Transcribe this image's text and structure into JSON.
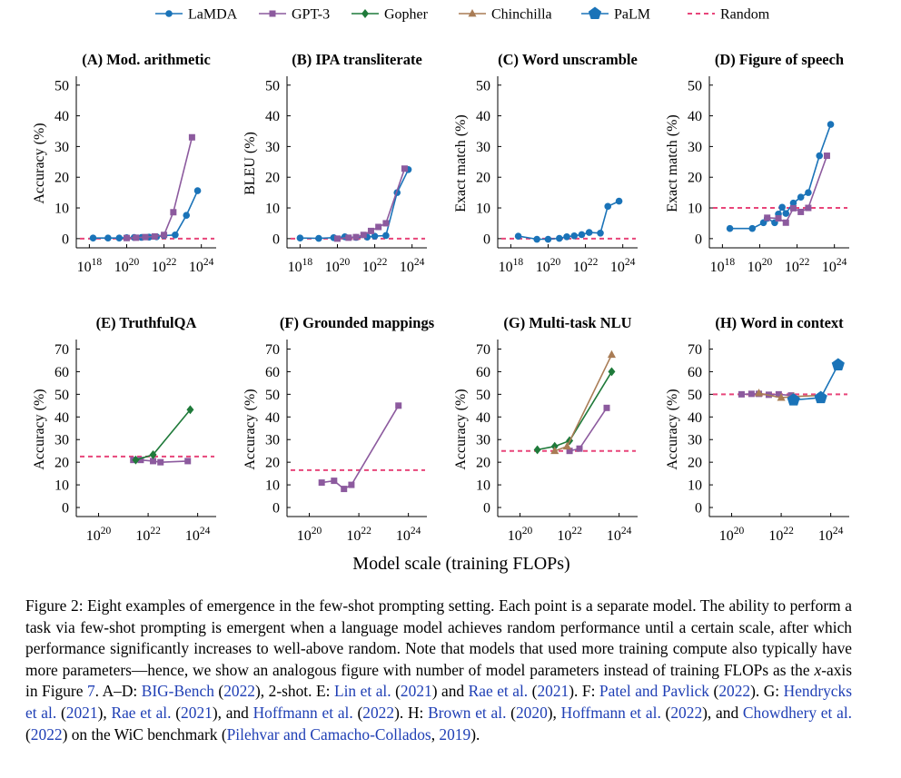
{
  "legend": [
    {
      "name": "LaMDA",
      "color": "#1a73b8",
      "marker": "circle"
    },
    {
      "name": "GPT-3",
      "color": "#8c5a9e",
      "marker": "square"
    },
    {
      "name": "Gopher",
      "color": "#1f7a3a",
      "marker": "diamond"
    },
    {
      "name": "Chinchilla",
      "color": "#a97c55",
      "marker": "triangle"
    },
    {
      "name": "PaLM",
      "color": "#1a73b8",
      "marker": "pentagon"
    },
    {
      "name": "Random",
      "color": "#e8457a",
      "marker": "dashed-line"
    }
  ],
  "shared_xlabel": "Model scale (training FLOPs)",
  "chart_data": [
    {
      "type": "line",
      "title": "(A) Mod. arithmetic",
      "ylabel": "Accuracy (%)",
      "xscale": "log",
      "xlim_exp": [
        17.3,
        24.6
      ],
      "xticks_exp": [
        18,
        20,
        22,
        24
      ],
      "ylim": [
        -3,
        52
      ],
      "yticks": [
        0,
        10,
        20,
        30,
        40,
        50
      ],
      "random": 0,
      "series": [
        {
          "name": "LaMDA",
          "points": [
            [
              18.2,
              0.2
            ],
            [
              19.0,
              0.2
            ],
            [
              19.6,
              0.2
            ],
            [
              20.0,
              0.3
            ],
            [
              20.4,
              0.4
            ],
            [
              20.8,
              0.4
            ],
            [
              21.2,
              0.5
            ],
            [
              21.6,
              0.6
            ],
            [
              22.0,
              1.0
            ],
            [
              22.6,
              1.2
            ],
            [
              23.2,
              7.6
            ],
            [
              23.8,
              15.6
            ]
          ]
        },
        {
          "name": "GPT-3",
          "points": [
            [
              20.0,
              0.2
            ],
            [
              20.5,
              0.3
            ],
            [
              21.0,
              0.5
            ],
            [
              21.5,
              0.7
            ],
            [
              22.0,
              1.2
            ],
            [
              22.5,
              8.6
            ],
            [
              23.5,
              33.0
            ]
          ]
        }
      ]
    },
    {
      "type": "line",
      "title": "(B) IPA transliterate",
      "ylabel": "BLEU (%)",
      "xscale": "log",
      "xlim_exp": [
        17.3,
        24.6
      ],
      "xticks_exp": [
        18,
        20,
        22,
        24
      ],
      "ylim": [
        -3,
        52
      ],
      "yticks": [
        0,
        10,
        20,
        30,
        40,
        50
      ],
      "random": 0,
      "series": [
        {
          "name": "LaMDA",
          "points": [
            [
              18.0,
              0.2
            ],
            [
              19.0,
              0.1
            ],
            [
              19.8,
              0.3
            ],
            [
              20.4,
              0.6
            ],
            [
              21.0,
              0.4
            ],
            [
              21.6,
              0.5
            ],
            [
              22.0,
              0.8
            ],
            [
              22.6,
              1.0
            ],
            [
              23.2,
              15.0
            ],
            [
              23.8,
              22.5
            ]
          ]
        },
        {
          "name": "GPT-3",
          "points": [
            [
              20.0,
              0.0
            ],
            [
              20.6,
              0.3
            ],
            [
              21.0,
              0.5
            ],
            [
              21.4,
              1.2
            ],
            [
              21.8,
              2.5
            ],
            [
              22.2,
              3.8
            ],
            [
              22.6,
              5.0
            ],
            [
              23.6,
              22.8
            ]
          ]
        }
      ]
    },
    {
      "type": "line",
      "title": "(C) Word unscramble",
      "ylabel": "Exact match (%)",
      "xscale": "log",
      "xlim_exp": [
        17.3,
        24.6
      ],
      "xticks_exp": [
        18,
        20,
        22,
        24
      ],
      "ylim": [
        -3,
        52
      ],
      "yticks": [
        0,
        10,
        20,
        30,
        40,
        50
      ],
      "random": 0,
      "series": [
        {
          "name": "LaMDA",
          "points": [
            [
              18.4,
              0.8
            ],
            [
              19.4,
              -0.2
            ],
            [
              20.0,
              -0.2
            ],
            [
              20.6,
              0.1
            ],
            [
              21.0,
              0.6
            ],
            [
              21.4,
              0.9
            ],
            [
              21.8,
              1.3
            ],
            [
              22.2,
              2.0
            ],
            [
              22.8,
              1.8
            ],
            [
              23.2,
              10.5
            ],
            [
              23.8,
              12.2
            ]
          ]
        }
      ]
    },
    {
      "type": "line",
      "title": "(D) Figure of speech",
      "ylabel": "Exact match (%)",
      "xscale": "log",
      "xlim_exp": [
        17.3,
        24.6
      ],
      "xticks_exp": [
        18,
        20,
        22,
        24
      ],
      "ylim": [
        -3,
        52
      ],
      "yticks": [
        0,
        10,
        20,
        30,
        40,
        50
      ],
      "random": 10,
      "series": [
        {
          "name": "LaMDA",
          "points": [
            [
              18.4,
              3.3
            ],
            [
              19.6,
              3.3
            ],
            [
              20.2,
              5.2
            ],
            [
              20.4,
              6.6
            ],
            [
              20.8,
              5.2
            ],
            [
              21.0,
              8.0
            ],
            [
              21.2,
              10.2
            ],
            [
              21.4,
              8.2
            ],
            [
              21.8,
              11.6
            ],
            [
              22.2,
              13.5
            ],
            [
              22.6,
              15.0
            ],
            [
              23.2,
              27.0
            ],
            [
              23.8,
              37.2
            ]
          ]
        },
        {
          "name": "GPT-3",
          "points": [
            [
              20.4,
              6.8
            ],
            [
              21.0,
              6.6
            ],
            [
              21.4,
              5.2
            ],
            [
              21.8,
              9.9
            ],
            [
              22.2,
              8.7
            ],
            [
              22.6,
              10.0
            ],
            [
              23.6,
              27.0
            ]
          ]
        }
      ]
    },
    {
      "type": "line",
      "title": "(E) TruthfulQA",
      "ylabel": "Accuracy (%)",
      "xscale": "log",
      "xlim_exp": [
        19.1,
        24.6
      ],
      "xticks_exp": [
        20,
        22,
        24
      ],
      "ylim": [
        -4,
        73
      ],
      "yticks": [
        0,
        10,
        20,
        30,
        40,
        50,
        60,
        70
      ],
      "random": 22.5,
      "series": [
        {
          "name": "GPT-3",
          "points": [
            [
              21.4,
              21.0
            ],
            [
              21.7,
              21.0
            ],
            [
              22.2,
              20.5
            ],
            [
              22.5,
              20.0
            ],
            [
              23.6,
              20.5
            ]
          ]
        },
        {
          "name": "Gopher",
          "points": [
            [
              21.5,
              21.0
            ],
            [
              22.2,
              23.3
            ],
            [
              23.7,
              43.2
            ]
          ]
        }
      ]
    },
    {
      "type": "line",
      "title": "(F) Grounded mappings",
      "ylabel": "Accuracy (%)",
      "xscale": "log",
      "xlim_exp": [
        19.1,
        24.6
      ],
      "xticks_exp": [
        20,
        22,
        24
      ],
      "ylim": [
        -4,
        73
      ],
      "yticks": [
        0,
        10,
        20,
        30,
        40,
        50,
        60,
        70
      ],
      "random": 16.5,
      "series": [
        {
          "name": "GPT-3",
          "points": [
            [
              20.5,
              11.0
            ],
            [
              21.0,
              11.8
            ],
            [
              21.4,
              8.2
            ],
            [
              21.7,
              10.0
            ],
            [
              23.6,
              45.0
            ]
          ]
        }
      ]
    },
    {
      "type": "line",
      "title": "(G) Multi-task NLU",
      "ylabel": "Accuracy (%)",
      "xscale": "log",
      "xlim_exp": [
        19.1,
        24.6
      ],
      "xticks_exp": [
        20,
        22,
        24
      ],
      "ylim": [
        -4,
        73
      ],
      "yticks": [
        0,
        10,
        20,
        30,
        40,
        50,
        60,
        70
      ],
      "random": 25,
      "series": [
        {
          "name": "GPT-3",
          "points": [
            [
              22.0,
              25.0
            ],
            [
              22.4,
              26.0
            ],
            [
              23.5,
              44.0
            ]
          ]
        },
        {
          "name": "Gopher",
          "points": [
            [
              20.7,
              25.5
            ],
            [
              21.4,
              27.0
            ],
            [
              22.0,
              29.5
            ],
            [
              23.7,
              60.0
            ]
          ]
        },
        {
          "name": "Chinchilla",
          "points": [
            [
              21.4,
              25.0
            ],
            [
              21.9,
              27.0
            ],
            [
              23.7,
              67.5
            ]
          ]
        }
      ]
    },
    {
      "type": "line",
      "title": "(H) Word in context",
      "ylabel": "Accuracy (%)",
      "xscale": "log",
      "xlim_exp": [
        19.1,
        24.6
      ],
      "xticks_exp": [
        20,
        22,
        24
      ],
      "ylim": [
        -4,
        73
      ],
      "yticks": [
        0,
        10,
        20,
        30,
        40,
        50,
        60,
        70
      ],
      "random": 50,
      "series": [
        {
          "name": "GPT-3",
          "points": [
            [
              20.4,
              50.0
            ],
            [
              20.8,
              50.2
            ],
            [
              21.1,
              50.2
            ],
            [
              21.5,
              49.8
            ],
            [
              21.9,
              50.0
            ],
            [
              22.4,
              49.5
            ]
          ]
        },
        {
          "name": "Chinchilla",
          "points": [
            [
              21.1,
              50.5
            ],
            [
              22.0,
              48.5
            ],
            [
              22.5,
              49.0
            ],
            [
              23.6,
              49.5
            ]
          ]
        },
        {
          "name": "PaLM",
          "points": [
            [
              22.5,
              47.5
            ],
            [
              23.6,
              48.5
            ],
            [
              24.3,
              63.0
            ]
          ]
        }
      ]
    }
  ],
  "caption": [
    {
      "t": "Figure 2: Eight examples of emergence in the few-shot prompting setting. Each point is a separate model. The ability to perform a task via few-shot prompting is emergent when a language model achieves random performance until a certain scale, after which performance significantly increases to well-above random. Note that models that used more training compute also typically have more parameters—hence, we show an analogous figure with number of model parameters instead of training FLOPs as the ",
      "ref": false
    },
    {
      "t": "x",
      "ref": false,
      "italic": true
    },
    {
      "t": "-axis in Figure ",
      "ref": false
    },
    {
      "t": "7",
      "ref": true
    },
    {
      "t": ". A–D: ",
      "ref": false
    },
    {
      "t": "BIG-Bench",
      "ref": true
    },
    {
      "t": " (",
      "ref": false
    },
    {
      "t": "2022",
      "ref": true
    },
    {
      "t": "), 2-shot. E: ",
      "ref": false
    },
    {
      "t": "Lin et al.",
      "ref": true
    },
    {
      "t": " (",
      "ref": false
    },
    {
      "t": "2021",
      "ref": true
    },
    {
      "t": ") and ",
      "ref": false
    },
    {
      "t": "Rae et al.",
      "ref": true
    },
    {
      "t": " (",
      "ref": false
    },
    {
      "t": "2021",
      "ref": true
    },
    {
      "t": "). F: ",
      "ref": false
    },
    {
      "t": "Patel and Pavlick",
      "ref": true
    },
    {
      "t": " (",
      "ref": false
    },
    {
      "t": "2022",
      "ref": true
    },
    {
      "t": "). G: ",
      "ref": false
    },
    {
      "t": "Hendrycks et al.",
      "ref": true
    },
    {
      "t": " (",
      "ref": false
    },
    {
      "t": "2021",
      "ref": true
    },
    {
      "t": "), ",
      "ref": false
    },
    {
      "t": "Rae et al.",
      "ref": true
    },
    {
      "t": " (",
      "ref": false
    },
    {
      "t": "2021",
      "ref": true
    },
    {
      "t": "), and ",
      "ref": false
    },
    {
      "t": "Hoffmann et al.",
      "ref": true
    },
    {
      "t": " (",
      "ref": false
    },
    {
      "t": "2022",
      "ref": true
    },
    {
      "t": "). H: ",
      "ref": false
    },
    {
      "t": "Brown et al.",
      "ref": true
    },
    {
      "t": " (",
      "ref": false
    },
    {
      "t": "2020",
      "ref": true
    },
    {
      "t": "), ",
      "ref": false
    },
    {
      "t": "Hoffmann et al.",
      "ref": true
    },
    {
      "t": " (",
      "ref": false
    },
    {
      "t": "2022",
      "ref": true
    },
    {
      "t": "), and ",
      "ref": false
    },
    {
      "t": "Chowdhery et al.",
      "ref": true
    },
    {
      "t": " (",
      "ref": false
    },
    {
      "t": "2022",
      "ref": true
    },
    {
      "t": ") on the WiC benchmark (",
      "ref": false
    },
    {
      "t": "Pilehvar and Camacho-Collados",
      "ref": true
    },
    {
      "t": ", ",
      "ref": false
    },
    {
      "t": "2019",
      "ref": true
    },
    {
      "t": ").",
      "ref": false
    }
  ]
}
